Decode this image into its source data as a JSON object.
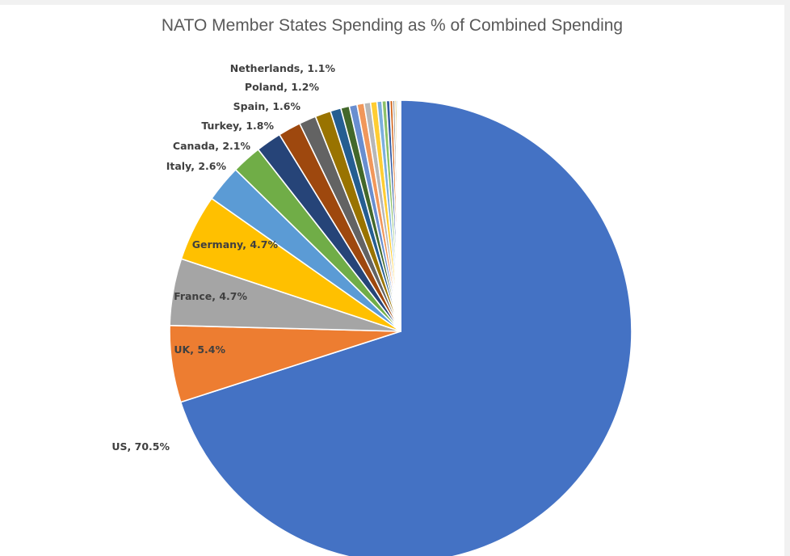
{
  "chart_data": {
    "type": "pie",
    "title": "NATO Member States Spending as % of Combined Spending",
    "start_angle_deg": 0,
    "direction": "clockwise",
    "slices": [
      {
        "label": "US",
        "value": 70.5,
        "color": "#4472c4",
        "show_label": true,
        "display": "US, 70.5%"
      },
      {
        "label": "UK",
        "value": 5.4,
        "color": "#ed7d31",
        "show_label": true,
        "display": "UK, 5.4%"
      },
      {
        "label": "France",
        "value": 4.7,
        "color": "#a5a5a5",
        "show_label": true,
        "display": "France, 4.7%"
      },
      {
        "label": "Germany",
        "value": 4.7,
        "color": "#ffc000",
        "show_label": true,
        "display": "Germany, 4.7%"
      },
      {
        "label": "Italy",
        "value": 2.6,
        "color": "#5b9bd5",
        "show_label": true,
        "display": "Italy, 2.6%"
      },
      {
        "label": "Canada",
        "value": 2.1,
        "color": "#70ad47",
        "show_label": true,
        "display": "Canada, 2.1%"
      },
      {
        "label": "Turkey",
        "value": 1.8,
        "color": "#264478",
        "show_label": true,
        "display": "Turkey, 1.8%"
      },
      {
        "label": "Spain",
        "value": 1.6,
        "color": "#9e480e",
        "show_label": true,
        "display": "Spain, 1.6%"
      },
      {
        "label": "Poland",
        "value": 1.2,
        "color": "#636363",
        "show_label": true,
        "display": "Poland, 1.2%"
      },
      {
        "label": "Netherlands",
        "value": 1.1,
        "color": "#997300",
        "show_label": true,
        "display": "Netherlands, 1.1%"
      },
      {
        "label": "",
        "value": 0.75,
        "color": "#255e91",
        "show_label": false
      },
      {
        "label": "",
        "value": 0.6,
        "color": "#43682b",
        "show_label": false
      },
      {
        "label": "",
        "value": 0.55,
        "color": "#698ed0",
        "show_label": false
      },
      {
        "label": "",
        "value": 0.5,
        "color": "#f1975a",
        "show_label": false
      },
      {
        "label": "",
        "value": 0.45,
        "color": "#b7b7b7",
        "show_label": false
      },
      {
        "label": "",
        "value": 0.45,
        "color": "#ffcd33",
        "show_label": false
      },
      {
        "label": "",
        "value": 0.35,
        "color": "#7cafdd",
        "show_label": false
      },
      {
        "label": "",
        "value": 0.3,
        "color": "#8cc168",
        "show_label": false
      },
      {
        "label": "",
        "value": 0.25,
        "color": "#335aa1",
        "show_label": false
      },
      {
        "label": "",
        "value": 0.2,
        "color": "#d26012",
        "show_label": false
      },
      {
        "label": "",
        "value": 0.15,
        "color": "#848484",
        "show_label": false
      },
      {
        "label": "",
        "value": 0.12,
        "color": "#cc9a00",
        "show_label": false
      },
      {
        "label": "",
        "value": 0.1,
        "color": "#327dc2",
        "show_label": false
      },
      {
        "label": "",
        "value": 0.08,
        "color": "#5a8a39",
        "show_label": false
      },
      {
        "label": "",
        "value": 0.06,
        "color": "#8faadc",
        "show_label": false
      },
      {
        "label": "",
        "value": 0.04,
        "color": "#f4b183",
        "show_label": false
      }
    ]
  }
}
